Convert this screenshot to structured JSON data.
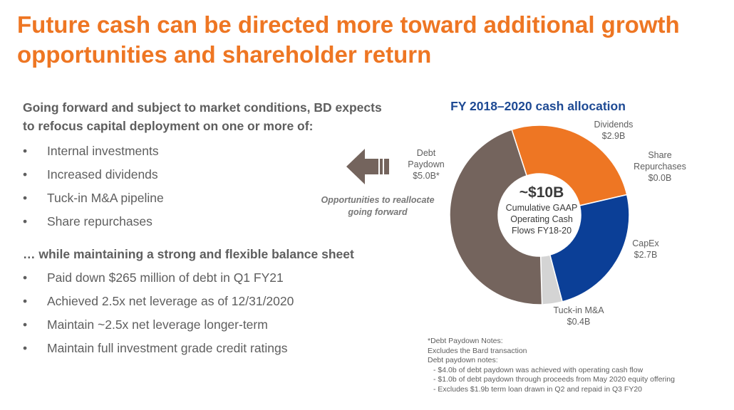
{
  "title": {
    "line1": "Future cash can be directed more toward additional growth",
    "line2": "opportunities and shareholder return"
  },
  "left": {
    "intro_line1": "Going forward and subject to market conditions, BD expects",
    "intro_line2": "to refocus capital deployment on one or more of:",
    "bullet_marker": "•",
    "bullets1": [
      "Internal investments",
      "Increased dividends",
      "Tuck-in M&A pipeline",
      "Share repurchases"
    ],
    "subhead": "… while maintaining a strong and flexible balance sheet",
    "bullets2": [
      "Paid down $265 million of debt in Q1 FY21",
      "Achieved 2.5x net leverage as of 12/31/2020",
      "Maintain ~2.5x net leverage longer-term",
      "Maintain full investment grade credit ratings"
    ]
  },
  "arrow": {
    "icon": "left-arrow-icon",
    "label_line1": "Opportunities to reallocate",
    "label_line2": "going forward"
  },
  "chart_data": {
    "type": "pie",
    "donut": true,
    "title": "FY 2018–2020 cash allocation",
    "center": {
      "big": "~$10B",
      "line1": "Cumulative GAAP",
      "line2": "Operating Cash",
      "line3": "Flows FY18-20"
    },
    "total": 11.0,
    "start_angle_deg": -18,
    "slices": [
      {
        "name": "Dividends",
        "value_label": "$2.9B",
        "value": 2.9,
        "color": "#ee7623"
      },
      {
        "name": "Share Repurchases",
        "value_label": "$0.0B",
        "value": 0.0,
        "color": "#0b3f97"
      },
      {
        "name": "CapEx",
        "value_label": "$2.7B",
        "value": 2.7,
        "color": "#0b3f97"
      },
      {
        "name": "Tuck-in M&A",
        "value_label": "$0.4B",
        "value": 0.4,
        "color": "#d4d4d4"
      },
      {
        "name": "Debt Paydown",
        "value_label": "$5.0B*",
        "value": 5.0,
        "color": "#74645d"
      }
    ],
    "labels": {
      "dividends": [
        "Dividends",
        "$2.9B"
      ],
      "share_repurchases": [
        "Share",
        "Repurchases",
        "$0.0B"
      ],
      "capex": [
        "CapEx",
        "$2.7B"
      ],
      "tuckin": [
        "Tuck-in M&A",
        "$0.4B"
      ],
      "debt": [
        "Debt",
        "Paydown",
        "$5.0B*"
      ]
    }
  },
  "notes": {
    "line1": "*Debt Paydown Notes:",
    "line2": "Excludes the Bard transaction",
    "line3": "Debt paydown notes:",
    "line4": "- $4.0b of debt paydown was achieved with operating cash flow",
    "line5": "- $1.0b of debt paydown through proceeds from May 2020 equity offering",
    "line6": "- Excludes $1.9b term loan drawn in Q2 and repaid in Q3 FY20"
  },
  "colors": {
    "accent_orange": "#ee7623",
    "navy": "#1e4a94",
    "text_gray": "#5e5e5e",
    "arrow_brown": "#74645d"
  }
}
